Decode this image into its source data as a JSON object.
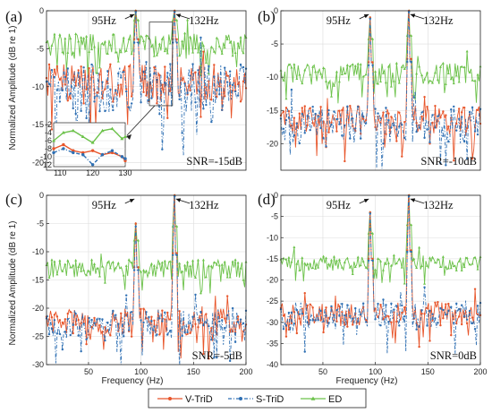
{
  "figure": {
    "ylabel": "Normalized Amplitude (dB re 1)",
    "xlabel": "Frequency (Hz)"
  },
  "legend": [
    {
      "name": "V-TriD",
      "color": "#e8552a",
      "marker": "dot",
      "dash": "solid"
    },
    {
      "name": "S-TriD",
      "color": "#2e6fb3",
      "marker": "dot",
      "dash": "dashdot"
    },
    {
      "name": "ED",
      "color": "#6cc24a",
      "marker": "triangle",
      "dash": "solid"
    }
  ],
  "chart_data": [
    {
      "panel": "(a)",
      "type": "line",
      "snr": "SNR=-15dB",
      "xlim": [
        10,
        200
      ],
      "ylim": [
        -21,
        0
      ],
      "yticks": [
        0,
        -5,
        -10,
        -15,
        -20
      ],
      "xticks": [],
      "xticklabels": [],
      "peaks": [
        {
          "x": 95,
          "label": "95Hz"
        },
        {
          "x": 132,
          "label": "132Hz"
        }
      ],
      "series": [
        {
          "name": "V-TriD",
          "noise_mean": -9.5,
          "noise_spread": 2.5,
          "peak_levels": [
            0,
            0
          ]
        },
        {
          "name": "S-TriD",
          "noise_mean": -10.2,
          "noise_spread": 3.2,
          "peak_levels": [
            -0.2,
            -0.2
          ]
        },
        {
          "name": "ED",
          "noise_mean": -4.5,
          "noise_spread": 1.5,
          "peak_levels": [
            0,
            0
          ]
        }
      ],
      "inset": {
        "xlim": [
          108,
          130
        ],
        "ylim": [
          -12.5,
          -1.5
        ],
        "yticks": [
          -2,
          -4,
          -6,
          -8,
          -10,
          -12
        ],
        "xticks": [
          110,
          120,
          130
        ],
        "series": [
          {
            "name": "ED",
            "x": [
              108,
              111,
              114,
              117,
              120,
              123,
              126,
              129,
              130
            ],
            "y": [
              -6,
              -4,
              -3.5,
              -5,
              -6.5,
              -3.5,
              -3,
              -5.5,
              -5
            ]
          },
          {
            "name": "V-TriD",
            "x": [
              108,
              111,
              114,
              117,
              120,
              123,
              126,
              129,
              130
            ],
            "y": [
              -8,
              -7,
              -8.5,
              -9,
              -8.5,
              -9.5,
              -9,
              -10,
              -11
            ]
          },
          {
            "name": "S-TriD",
            "x": [
              108,
              111,
              114,
              117,
              120,
              123,
              126,
              129,
              130
            ],
            "y": [
              -9,
              -8,
              -9,
              -9.5,
              -12,
              -9.5,
              -8.5,
              -10,
              -10.5
            ]
          }
        ]
      }
    },
    {
      "panel": "(b)",
      "type": "line",
      "snr": "SNR=-10dB",
      "xlim": [
        10,
        200
      ],
      "ylim": [
        -24,
        0
      ],
      "yticks": [
        0,
        -5,
        -10,
        -15,
        -20
      ],
      "xticks": [],
      "xticklabels": [],
      "peaks": [
        {
          "x": 95,
          "label": "95Hz"
        },
        {
          "x": 132,
          "label": "132Hz"
        }
      ],
      "series": [
        {
          "name": "V-TriD",
          "noise_mean": -16.5,
          "noise_spread": 2.2,
          "peak_levels": [
            -1,
            0
          ]
        },
        {
          "name": "S-TriD",
          "noise_mean": -17.2,
          "noise_spread": 2.8,
          "peak_levels": [
            -1.2,
            -0.2
          ]
        },
        {
          "name": "ED",
          "noise_mean": -9.5,
          "noise_spread": 1.6,
          "peak_levels": [
            -1,
            0
          ]
        }
      ]
    },
    {
      "panel": "(c)",
      "type": "line",
      "snr": "SNR=-5dB",
      "xlim": [
        10,
        200
      ],
      "ylim": [
        -30,
        0
      ],
      "yticks": [
        0,
        -5,
        -10,
        -15,
        -20,
        -25,
        -30
      ],
      "xticks": [
        50,
        100,
        150,
        200
      ],
      "xticklabels": [
        "50",
        "100",
        "150",
        "200"
      ],
      "peaks": [
        {
          "x": 95,
          "label": "95Hz"
        },
        {
          "x": 132,
          "label": "132Hz"
        }
      ],
      "series": [
        {
          "name": "V-TriD",
          "noise_mean": -22.5,
          "noise_spread": 2.4,
          "peak_levels": [
            -5,
            0
          ]
        },
        {
          "name": "S-TriD",
          "noise_mean": -23,
          "noise_spread": 2.8,
          "peak_levels": [
            -5.5,
            -0.2
          ]
        },
        {
          "name": "ED",
          "noise_mean": -13,
          "noise_spread": 1.6,
          "peak_levels": [
            -5,
            0
          ]
        }
      ]
    },
    {
      "panel": "(d)",
      "type": "line",
      "snr": "SNR=0dB",
      "xlim": [
        10,
        200
      ],
      "ylim": [
        -40,
        0
      ],
      "yticks": [
        0,
        -5,
        -10,
        -15,
        -20,
        -25,
        -30,
        -35,
        -40
      ],
      "xticks": [
        50,
        100,
        150,
        200
      ],
      "xticklabels": [
        "50",
        "100",
        "150",
        "200"
      ],
      "peaks": [
        {
          "x": 95,
          "label": "95Hz"
        },
        {
          "x": 132,
          "label": "132Hz"
        }
      ],
      "series": [
        {
          "name": "V-TriD",
          "noise_mean": -28,
          "noise_spread": 2.8,
          "peak_levels": [
            -4,
            0
          ]
        },
        {
          "name": "S-TriD",
          "noise_mean": -28.5,
          "noise_spread": 3.2,
          "peak_levels": [
            -4.3,
            -0.2
          ]
        },
        {
          "name": "ED",
          "noise_mean": -16,
          "noise_spread": 1.8,
          "peak_levels": [
            -4,
            0
          ]
        }
      ]
    }
  ]
}
